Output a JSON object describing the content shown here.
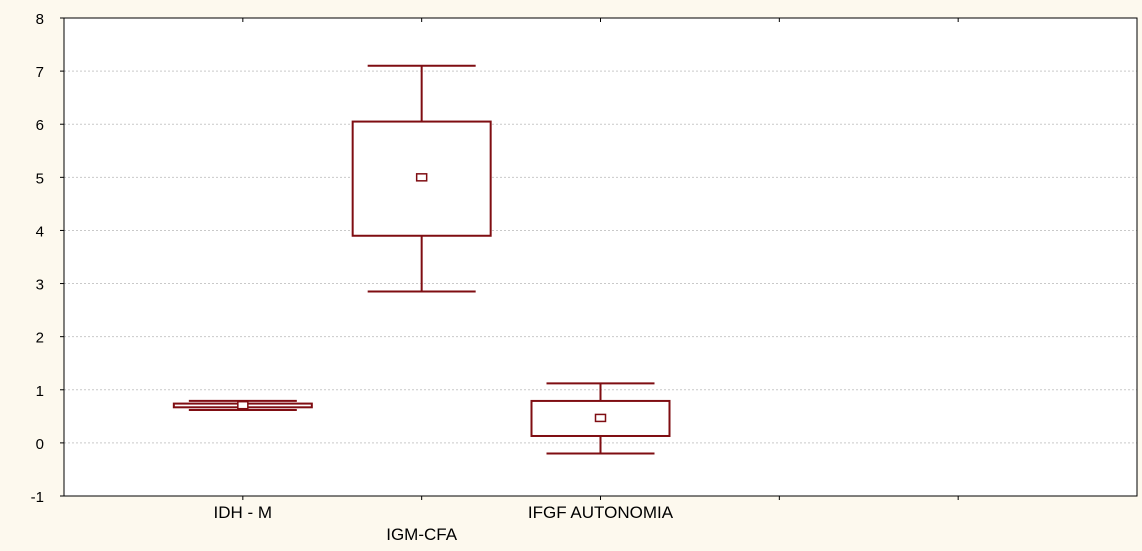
{
  "chart_data": {
    "type": "boxplot",
    "title": "",
    "xlabel": "",
    "ylabel": "",
    "ylim": [
      -1,
      8
    ],
    "yticks": [
      -1,
      0,
      1,
      2,
      3,
      4,
      5,
      6,
      7,
      8
    ],
    "grid": true,
    "legend": "none",
    "categories": [
      "IDH - M",
      "IGM-CFA",
      "IFGF AUTONOMIA"
    ],
    "boxes": [
      {
        "name": "IDH - M",
        "whisker_low": 0.62,
        "q1": 0.67,
        "median": 0.71,
        "q3": 0.74,
        "whisker_high": 0.79
      },
      {
        "name": "IGM-CFA",
        "whisker_low": 2.85,
        "q1": 3.9,
        "median": 5.0,
        "q3": 6.05,
        "whisker_high": 7.1
      },
      {
        "name": "IFGF AUTONOMIA",
        "whisker_low": -0.2,
        "q1": 0.13,
        "median": 0.47,
        "q3": 0.79,
        "whisker_high": 1.12
      }
    ],
    "colors": {
      "box": "#7f0d12",
      "grid": "#c9c9c9",
      "axis": "#000000",
      "background": "#fdf9ee",
      "plot_background": "#ffffff"
    }
  }
}
